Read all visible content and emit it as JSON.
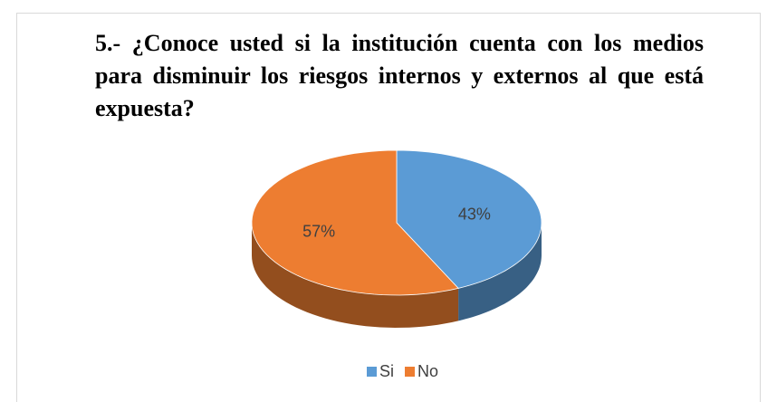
{
  "chart_data": {
    "type": "pie",
    "title": "5.- ¿Conoce usted si la institución cuenta con los medios para disminuir los riesgos internos y externos al que está expuesta?",
    "categories": [
      "Si",
      "No"
    ],
    "values": [
      43,
      57
    ],
    "value_labels": [
      "43%",
      "57%"
    ],
    "colors": [
      "#5b9bd5",
      "#ed7d31"
    ],
    "legend": "bottom"
  }
}
